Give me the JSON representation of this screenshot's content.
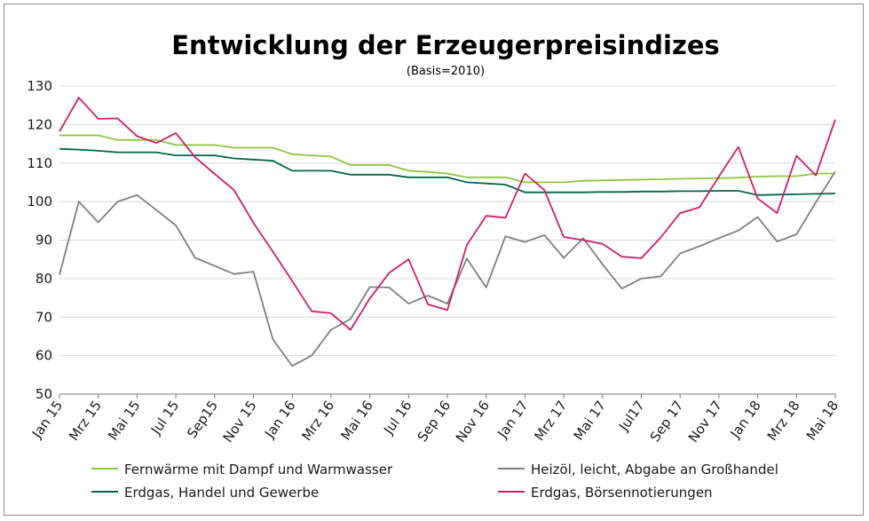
{
  "chart_data": {
    "type": "line",
    "title": "Entwicklung der Erzeugerpreisindizes",
    "subtitle": "(Basis=2010)",
    "ylim": [
      50,
      130
    ],
    "yticks": [
      50,
      60,
      70,
      80,
      90,
      100,
      110,
      120,
      130
    ],
    "grid": true,
    "legend_position": "bottom",
    "x_tick_labels": [
      "Jan 15",
      "Mrz 15",
      "Mai 15",
      "Jul 15",
      "Sep15",
      "Nov 15",
      "Jan 16",
      "Mrz 16",
      "Mai 16",
      "Jul 16",
      "Sep 16",
      "Nov 16",
      "Jan 17",
      "Mrz 17",
      "Mai 17",
      "Jul17",
      "Sep 17",
      "Nov 17",
      "Jan 18",
      "Mrz 18",
      "Mai 18"
    ],
    "months": [
      "Jan 15",
      "Feb 15",
      "Mrz 15",
      "Apr 15",
      "Mai 15",
      "Jun 15",
      "Jul 15",
      "Aug 15",
      "Sep 15",
      "Okt 15",
      "Nov 15",
      "Dez 15",
      "Jan 16",
      "Feb 16",
      "Mrz 16",
      "Apr 16",
      "Mai 16",
      "Jun 16",
      "Jul 16",
      "Aug 16",
      "Sep 16",
      "Okt 16",
      "Nov 16",
      "Dez 16",
      "Jan 17",
      "Feb 17",
      "Mrz 17",
      "Apr 17",
      "Mai 17",
      "Jun 17",
      "Jul 17",
      "Aug 17",
      "Sep 17",
      "Okt 17",
      "Nov 17",
      "Dez 17",
      "Jan 18",
      "Feb 18",
      "Mrz 18",
      "Apr 18",
      "Mai 18"
    ],
    "series": [
      {
        "name": "Fernwärme mit Dampf und Warmwasser",
        "color": "#8dc63f",
        "values": [
          117.2,
          117.2,
          117.2,
          116.0,
          116.0,
          116.0,
          114.7,
          114.7,
          114.7,
          114.0,
          114.0,
          114.0,
          112.3,
          112.0,
          111.7,
          109.5,
          109.5,
          109.5,
          108.0,
          107.7,
          107.3,
          106.3,
          106.3,
          106.3,
          105.0,
          105.0,
          105.0,
          105.4,
          105.5,
          105.6,
          105.7,
          105.8,
          105.9,
          106.0,
          106.1,
          106.2,
          106.5,
          106.6,
          106.6,
          107.3,
          107.3
        ]
      },
      {
        "name": "Heizöl, leicht, Abgabe an Großhandel",
        "color": "#7f7f7f",
        "values": [
          81.0,
          100.0,
          94.6,
          100.0,
          101.7,
          97.8,
          93.8,
          85.4,
          83.3,
          81.2,
          81.8,
          64.2,
          57.3,
          60.0,
          66.7,
          69.5,
          77.8,
          77.7,
          73.5,
          75.6,
          73.5,
          85.2,
          77.7,
          91.0,
          89.5,
          91.3,
          85.4,
          90.5,
          83.7,
          77.4,
          80.0,
          80.6,
          86.5,
          88.4,
          90.5,
          92.5,
          96.0,
          89.6,
          91.5,
          99.8,
          107.8
        ]
      },
      {
        "name": "Erdgas, Handel und Gewerbe",
        "color": "#00674b",
        "values": [
          113.7,
          113.5,
          113.2,
          112.8,
          112.8,
          112.8,
          112.0,
          112.0,
          112.0,
          111.2,
          110.9,
          110.6,
          108.0,
          108.0,
          108.0,
          107.0,
          107.0,
          107.0,
          106.3,
          106.3,
          106.3,
          105.0,
          104.7,
          104.4,
          102.4,
          102.4,
          102.4,
          102.4,
          102.5,
          102.5,
          102.6,
          102.6,
          102.7,
          102.7,
          102.8,
          102.8,
          101.7,
          101.8,
          101.9,
          102.0,
          102.1
        ]
      },
      {
        "name": "Erdgas, Börsennotierungen",
        "color": "#cc1f6b",
        "values": [
          118.2,
          127.0,
          121.5,
          121.6,
          117.0,
          115.2,
          117.8,
          111.5,
          107.2,
          103.0,
          94.5,
          87.0,
          79.4,
          71.5,
          71.0,
          66.7,
          74.8,
          81.5,
          85.0,
          73.3,
          71.8,
          88.7,
          96.3,
          95.8,
          107.3,
          103.0,
          90.8,
          90.0,
          89.0,
          85.7,
          85.3,
          90.7,
          97.0,
          98.5,
          106.5,
          114.2,
          100.8,
          97.0,
          111.9,
          106.8,
          121.3
        ]
      }
    ]
  },
  "legend": {
    "items": [
      {
        "label": "Fernwärme mit Dampf und Warmwasser",
        "color": "#8dc63f"
      },
      {
        "label": "Heizöl, leicht, Abgabe an Großhandel",
        "color": "#7f7f7f"
      },
      {
        "label": "Erdgas, Handel und Gewerbe",
        "color": "#00674b"
      },
      {
        "label": "Erdgas, Börsennotierungen",
        "color": "#cc1f6b"
      }
    ]
  }
}
